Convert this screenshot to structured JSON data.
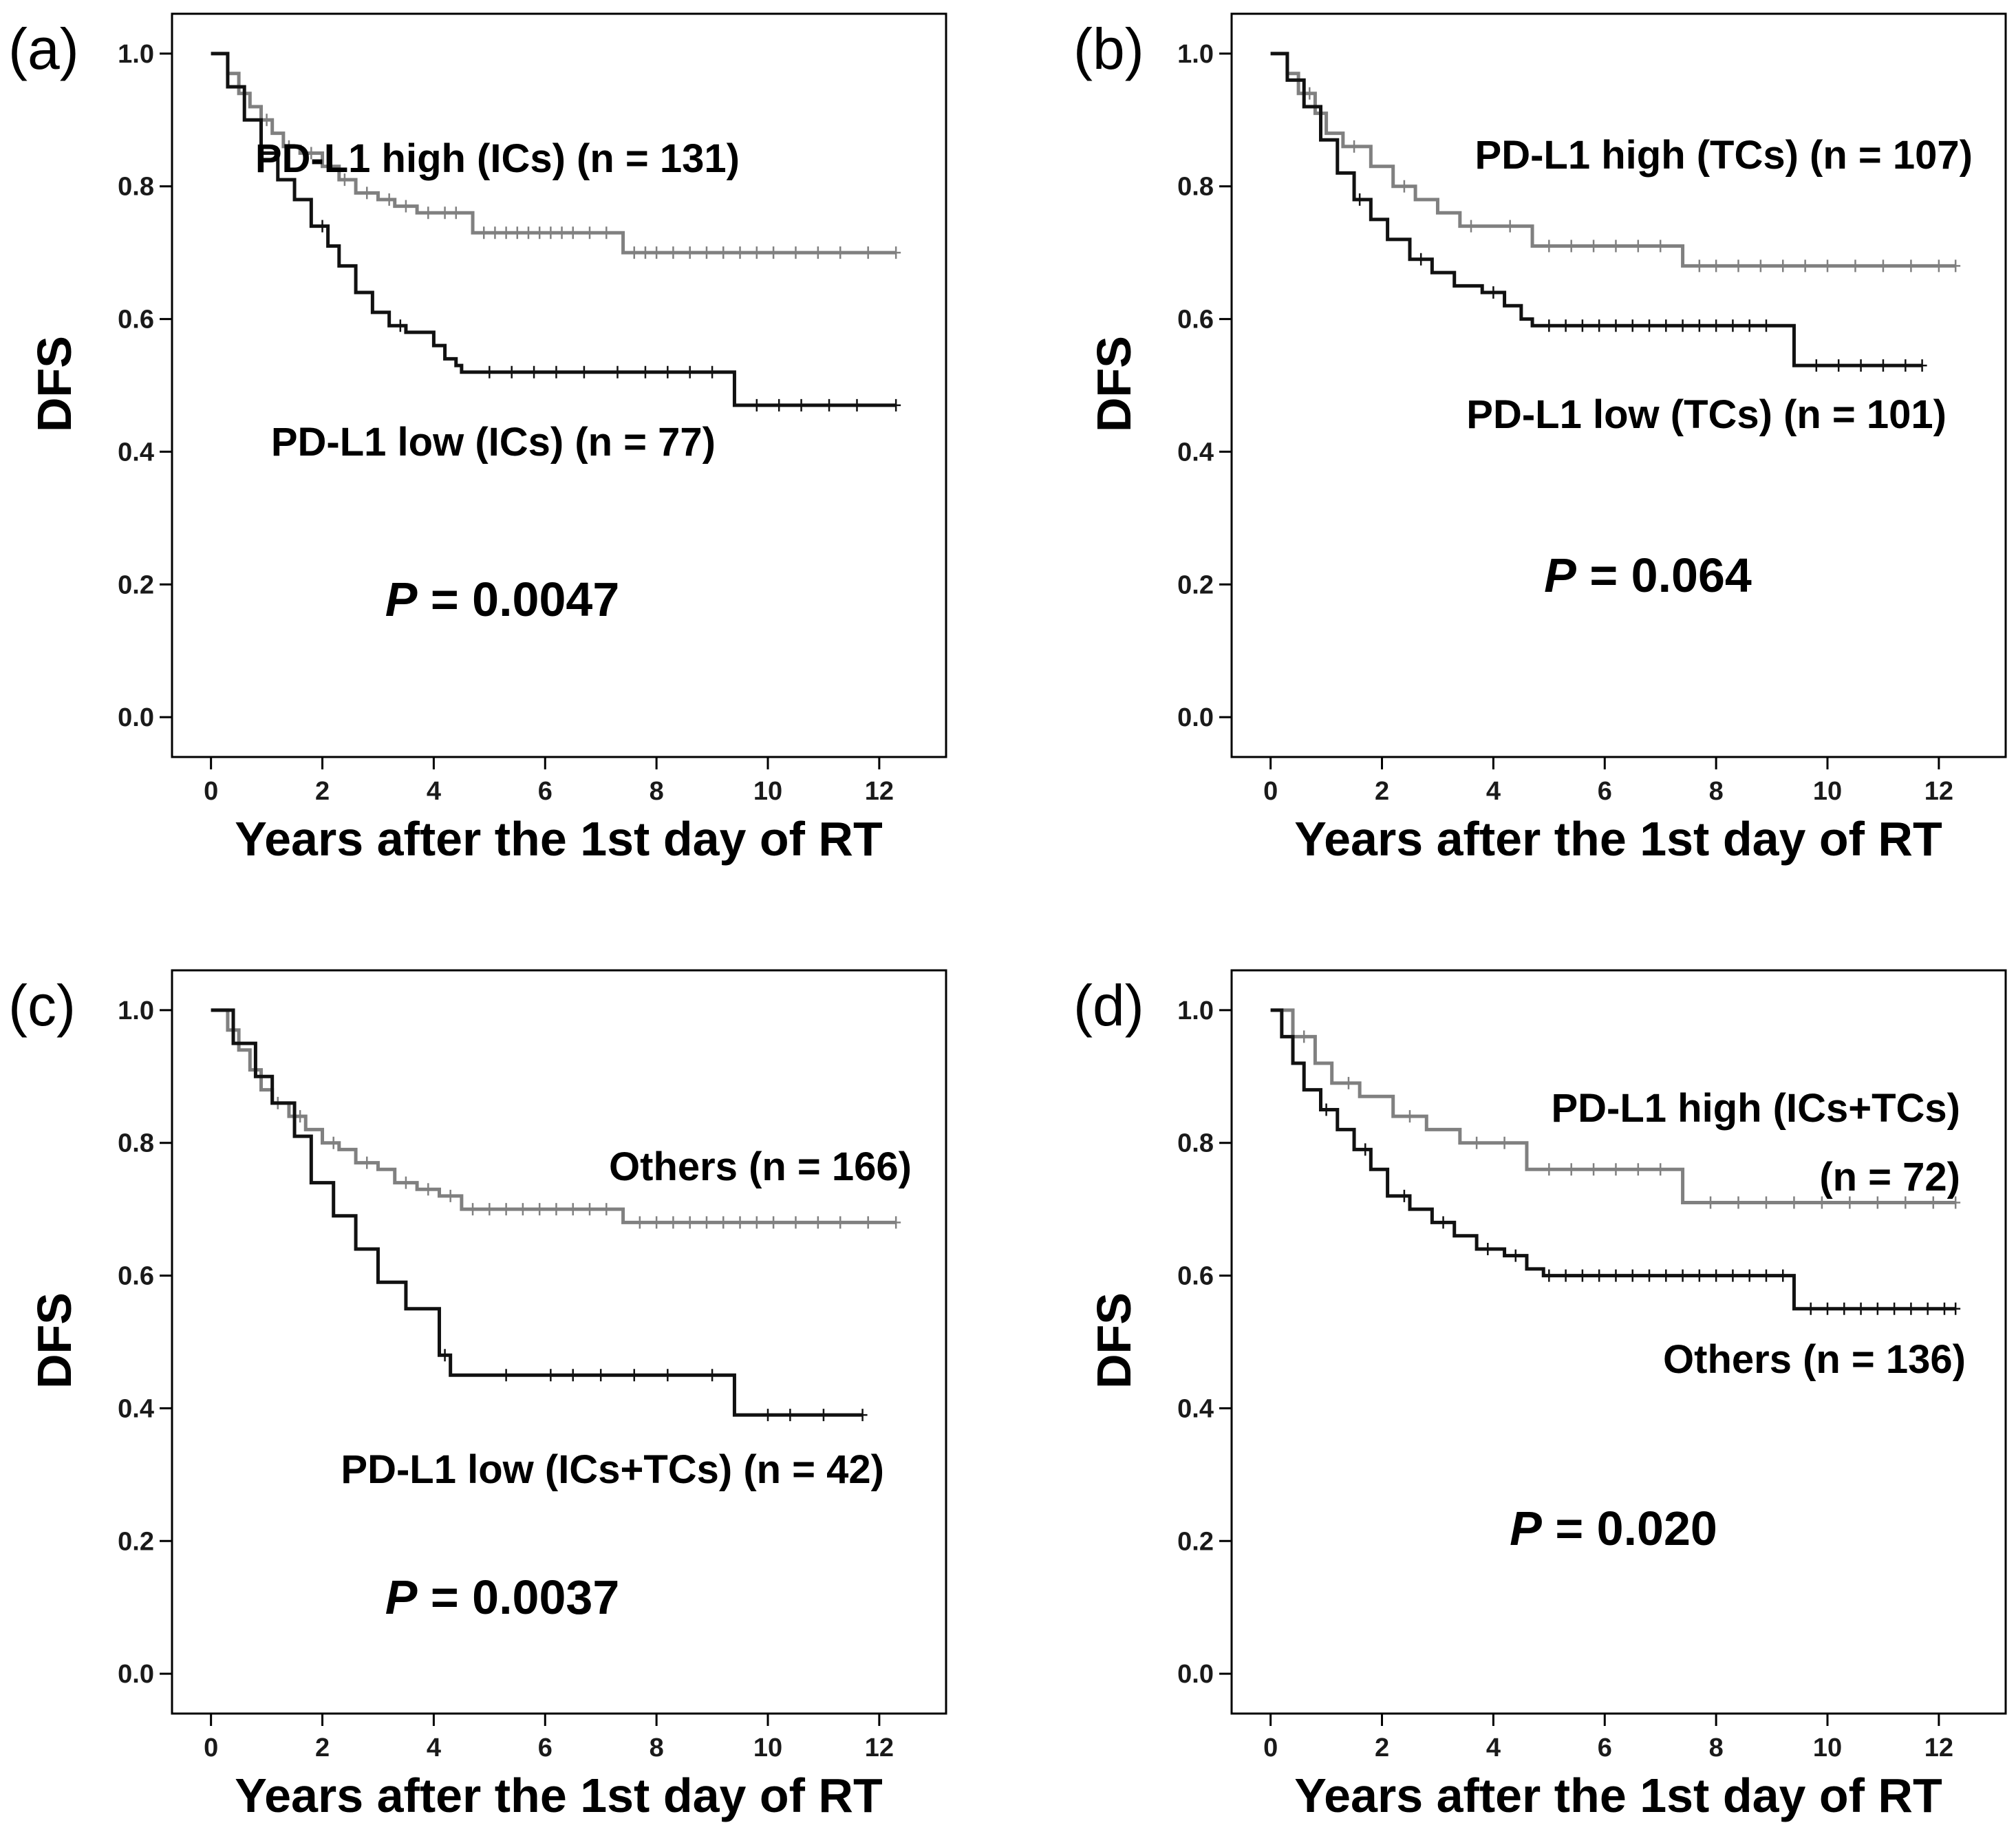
{
  "colors": {
    "high": "#808080",
    "low": "#111111",
    "text": "#000000"
  },
  "chart_data": [
    {
      "type": "line",
      "panel": "(a)",
      "xlabel": "Years after the 1st day of RT",
      "ylabel": "DFS",
      "xlim": [
        -0.7,
        13.2
      ],
      "ylim": [
        -0.06,
        1.06
      ],
      "xticks": [
        "0",
        "2",
        "4",
        "6",
        "8",
        "10",
        "12"
      ],
      "yticks": [
        "0.0",
        "0.2",
        "0.4",
        "0.6",
        "0.8",
        "1.0"
      ],
      "pvalue": "= 0.0047",
      "series": [
        {
          "name": "PD-L1 high (ICs) (n = 131)",
          "label": "PD-L1 high (ICs) (n = 131)",
          "color": "high",
          "x": [
            0,
            0.3,
            0.5,
            0.7,
            0.9,
            1.1,
            1.3,
            1.6,
            2.0,
            2.3,
            2.6,
            3.0,
            3.3,
            3.7,
            4.1,
            4.7,
            5.6,
            6.6,
            7.4,
            12.3
          ],
          "y": [
            1.0,
            0.97,
            0.94,
            0.92,
            0.9,
            0.88,
            0.86,
            0.85,
            0.83,
            0.81,
            0.79,
            0.78,
            0.77,
            0.76,
            0.76,
            0.73,
            0.73,
            0.73,
            0.7,
            0.7
          ],
          "censors": [
            0.6,
            1.0,
            1.4,
            1.8,
            2.4,
            2.8,
            3.2,
            3.5,
            3.9,
            4.2,
            4.4,
            4.9,
            5.1,
            5.3,
            5.5,
            5.7,
            5.9,
            6.1,
            6.3,
            6.5,
            6.8,
            7.1,
            7.6,
            7.8,
            8.0,
            8.3,
            8.6,
            8.9,
            9.2,
            9.5,
            9.8,
            10.1,
            10.5,
            10.9,
            11.3,
            11.8,
            12.3
          ]
        },
        {
          "name": "PD-L1 low (ICs) (n = 77)",
          "label": "PD-L1 low (ICs) (n = 77)",
          "color": "low",
          "x": [
            0,
            0.3,
            0.6,
            0.9,
            1.2,
            1.5,
            1.8,
            2.1,
            2.3,
            2.6,
            2.9,
            3.2,
            3.5,
            4.0,
            4.2,
            4.4,
            4.5,
            9.4,
            12.3
          ],
          "y": [
            1.0,
            0.95,
            0.9,
            0.85,
            0.81,
            0.78,
            0.74,
            0.71,
            0.68,
            0.64,
            0.61,
            0.59,
            0.58,
            0.56,
            0.54,
            0.53,
            0.52,
            0.47,
            0.47
          ],
          "censors": [
            2.0,
            3.4,
            5.0,
            5.4,
            5.8,
            6.2,
            6.7,
            7.3,
            7.8,
            8.2,
            8.6,
            9.0,
            9.8,
            10.2,
            10.6,
            11.1,
            11.6,
            12.3
          ]
        }
      ]
    },
    {
      "type": "line",
      "panel": "(b)",
      "xlabel": "Years after the 1st day of RT",
      "ylabel": "DFS",
      "xlim": [
        -0.7,
        13.2
      ],
      "ylim": [
        -0.06,
        1.06
      ],
      "xticks": [
        "0",
        "2",
        "4",
        "6",
        "8",
        "10",
        "12"
      ],
      "yticks": [
        "0.0",
        "0.2",
        "0.4",
        "0.6",
        "0.8",
        "1.0"
      ],
      "pvalue": "= 0.064",
      "series": [
        {
          "name": "PD-L1 high (TCs) (n = 107)",
          "label": "PD-L1 high (TCs) (n = 107)",
          "color": "high",
          "x": [
            0,
            0.3,
            0.5,
            0.8,
            1.0,
            1.3,
            1.8,
            2.2,
            2.6,
            3.0,
            3.4,
            4.0,
            4.7,
            7.4,
            12.3
          ],
          "y": [
            1.0,
            0.97,
            0.94,
            0.91,
            0.88,
            0.86,
            0.83,
            0.8,
            0.78,
            0.76,
            0.74,
            0.74,
            0.71,
            0.68,
            0.68
          ],
          "censors": [
            0.7,
            1.5,
            2.4,
            3.6,
            4.3,
            5.0,
            5.4,
            5.8,
            6.2,
            6.6,
            7.0,
            7.7,
            8.0,
            8.4,
            8.8,
            9.2,
            9.6,
            10.0,
            10.5,
            11.0,
            11.5,
            12.0,
            12.3
          ]
        },
        {
          "name": "PD-L1 low (TCs) (n = 101)",
          "label": "PD-L1 low (TCs) (n = 101)",
          "color": "low",
          "x": [
            0,
            0.3,
            0.6,
            0.9,
            1.2,
            1.5,
            1.8,
            2.1,
            2.5,
            2.9,
            3.3,
            3.8,
            4.2,
            4.5,
            4.7,
            9.4,
            11.7
          ],
          "y": [
            1.0,
            0.96,
            0.92,
            0.87,
            0.82,
            0.78,
            0.75,
            0.72,
            0.69,
            0.67,
            0.65,
            0.64,
            0.62,
            0.6,
            0.59,
            0.53,
            0.53
          ],
          "censors": [
            1.6,
            2.7,
            4.0,
            5.0,
            5.3,
            5.6,
            5.9,
            6.2,
            6.5,
            6.8,
            7.1,
            7.4,
            7.7,
            8.0,
            8.3,
            8.6,
            8.9,
            9.8,
            10.2,
            10.6,
            11.0,
            11.4,
            11.7
          ]
        }
      ]
    },
    {
      "type": "line",
      "panel": "(c)",
      "xlabel": "Years after the 1st day of RT",
      "ylabel": "DFS",
      "xlim": [
        -0.7,
        13.2
      ],
      "ylim": [
        -0.06,
        1.06
      ],
      "xticks": [
        "0",
        "2",
        "4",
        "6",
        "8",
        "10",
        "12"
      ],
      "yticks": [
        "0.0",
        "0.2",
        "0.4",
        "0.6",
        "0.8",
        "1.0"
      ],
      "pvalue": "= 0.0037",
      "series": [
        {
          "name": "Others (n = 166)",
          "label": "Others (n = 166)",
          "color": "high",
          "x": [
            0,
            0.3,
            0.5,
            0.7,
            0.9,
            1.1,
            1.4,
            1.7,
            2.0,
            2.3,
            2.6,
            3.0,
            3.3,
            3.7,
            4.1,
            4.5,
            7.4,
            12.3
          ],
          "y": [
            1.0,
            0.97,
            0.94,
            0.91,
            0.88,
            0.86,
            0.84,
            0.82,
            0.8,
            0.79,
            0.77,
            0.76,
            0.74,
            0.73,
            0.72,
            0.7,
            0.68,
            0.68
          ],
          "censors": [
            0.8,
            1.2,
            1.6,
            2.2,
            2.8,
            3.5,
            3.9,
            4.3,
            4.7,
            5.0,
            5.3,
            5.6,
            5.9,
            6.2,
            6.5,
            6.8,
            7.1,
            7.7,
            8.0,
            8.3,
            8.6,
            8.9,
            9.2,
            9.5,
            9.8,
            10.1,
            10.5,
            10.9,
            11.3,
            11.8,
            12.3
          ]
        },
        {
          "name": "PD-L1 low (ICs+TCs) (n = 42)",
          "label": "PD-L1 low (ICs+TCs) (n = 42)",
          "color": "low",
          "x": [
            0,
            0.4,
            0.8,
            1.1,
            1.5,
            1.8,
            2.2,
            2.6,
            3.0,
            3.5,
            4.1,
            4.3,
            9.4,
            11.7
          ],
          "y": [
            1.0,
            0.95,
            0.9,
            0.86,
            0.81,
            0.74,
            0.69,
            0.64,
            0.59,
            0.55,
            0.48,
            0.45,
            0.39,
            0.39
          ],
          "censors": [
            4.2,
            5.3,
            6.1,
            6.5,
            7.0,
            7.6,
            8.2,
            9.0,
            10.0,
            10.4,
            11.0,
            11.7
          ]
        }
      ]
    },
    {
      "type": "line",
      "panel": "(d)",
      "xlabel": "Years after the 1st day of RT",
      "ylabel": "DFS",
      "xlim": [
        -0.7,
        13.2
      ],
      "ylim": [
        -0.06,
        1.06
      ],
      "xticks": [
        "0",
        "2",
        "4",
        "6",
        "8",
        "10",
        "12"
      ],
      "yticks": [
        "0.0",
        "0.2",
        "0.4",
        "0.6",
        "0.8",
        "1.0"
      ],
      "pvalue": "= 0.020",
      "series": [
        {
          "name": "PD-L1 high (ICs+TCs) (n = 72)",
          "label": "PD-L1 high (ICs+TCs)",
          "label2": "(n = 72)",
          "color": "high",
          "x": [
            0,
            0.4,
            0.8,
            1.1,
            1.6,
            2.2,
            2.8,
            3.4,
            4.6,
            7.4,
            12.3
          ],
          "y": [
            1.0,
            0.96,
            0.92,
            0.89,
            0.87,
            0.84,
            0.82,
            0.8,
            0.76,
            0.71,
            0.71
          ],
          "censors": [
            0.6,
            1.4,
            2.5,
            3.7,
            4.2,
            5.0,
            5.4,
            5.8,
            6.2,
            6.6,
            7.0,
            7.9,
            8.4,
            8.9,
            9.4,
            9.9,
            10.4,
            10.9,
            11.4,
            11.9,
            12.3
          ]
        },
        {
          "name": "Others (n = 136)",
          "label": "Others (n = 136)",
          "color": "low",
          "x": [
            0,
            0.2,
            0.4,
            0.6,
            0.9,
            1.2,
            1.5,
            1.8,
            2.1,
            2.5,
            2.9,
            3.3,
            3.7,
            4.2,
            4.6,
            4.9,
            9.4,
            12.3
          ],
          "y": [
            1.0,
            0.96,
            0.92,
            0.88,
            0.85,
            0.82,
            0.79,
            0.76,
            0.72,
            0.7,
            0.68,
            0.66,
            0.64,
            0.63,
            0.61,
            0.6,
            0.55,
            0.55
          ],
          "censors": [
            1.0,
            1.7,
            2.4,
            3.1,
            3.9,
            4.4,
            5.0,
            5.3,
            5.6,
            5.9,
            6.2,
            6.5,
            6.8,
            7.1,
            7.4,
            7.7,
            8.0,
            8.3,
            8.6,
            8.9,
            9.2,
            9.7,
            10.0,
            10.3,
            10.6,
            10.9,
            11.2,
            11.5,
            11.8,
            12.1,
            12.3
          ]
        }
      ]
    }
  ]
}
